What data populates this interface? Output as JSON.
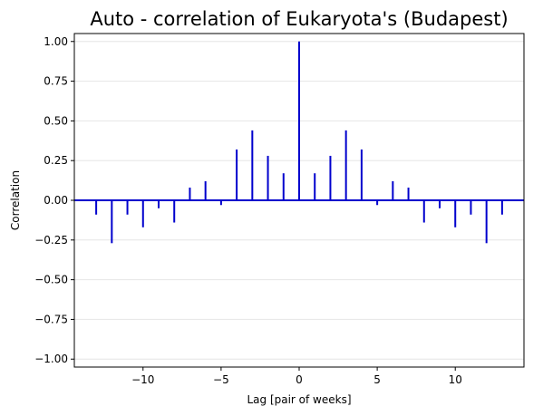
{
  "chart_data": {
    "type": "bar",
    "title": "Auto - correlation of Eukaryota's (Budapest)",
    "xlabel": "Lag [pair of weeks]",
    "ylabel": "Correlation",
    "xlim": [
      -14.4,
      14.4
    ],
    "ylim": [
      -1.05,
      1.05
    ],
    "grid": "horizontal",
    "colors": {
      "bars": "#0000cd",
      "zero_line": "#0000cd",
      "grid": "#e6e6e6"
    },
    "x_ticks": [
      -10,
      -5,
      0,
      5,
      10
    ],
    "x_tick_labels": [
      "−10",
      "−5",
      "0",
      "5",
      "10"
    ],
    "y_ticks": [
      -1.0,
      -0.75,
      -0.5,
      -0.25,
      0.0,
      0.25,
      0.5,
      0.75,
      1.0
    ],
    "y_tick_labels": [
      "−1.00",
      "−0.75",
      "−0.50",
      "−0.25",
      "0.00",
      "0.25",
      "0.50",
      "0.75",
      "1.00"
    ],
    "lags": [
      -13,
      -12,
      -11,
      -10,
      -9,
      -8,
      -7,
      -6,
      -5,
      -4,
      -3,
      -2,
      -1,
      0,
      1,
      2,
      3,
      4,
      5,
      6,
      7,
      8,
      9,
      10,
      11,
      12,
      13
    ],
    "values": [
      -0.09,
      -0.27,
      -0.09,
      -0.17,
      -0.05,
      -0.14,
      0.08,
      0.12,
      -0.03,
      0.32,
      0.44,
      0.28,
      0.17,
      1.0,
      0.17,
      0.28,
      0.44,
      0.32,
      -0.03,
      0.12,
      0.08,
      -0.14,
      -0.05,
      -0.17,
      -0.09,
      -0.27,
      -0.09
    ]
  }
}
